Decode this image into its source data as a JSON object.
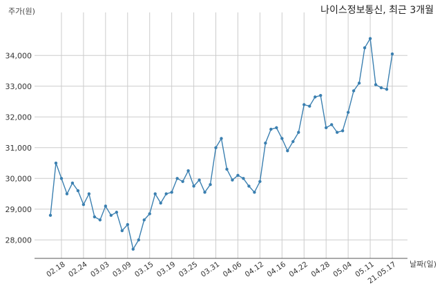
{
  "chart_data": {
    "type": "line",
    "title": "나이스정보통신, 최근 3개월",
    "ylabel": "주가(원)",
    "xlabel": "날짜(일)",
    "ylim": [
      27400,
      35400
    ],
    "yticks": [
      28000,
      29000,
      30000,
      31000,
      32000,
      33000,
      34000
    ],
    "ytick_labels": [
      "28,000",
      "29,000",
      "30,000",
      "31,000",
      "32,000",
      "33,000",
      "34,000"
    ],
    "xtick_labels": [
      "02.18",
      "02.24",
      "03.03",
      "03.09",
      "03.15",
      "03.19",
      "03.25",
      "03.31",
      "04.06",
      "04.12",
      "04.16",
      "04.22",
      "04.28",
      "05.04",
      "05.11",
      "21.05.17"
    ],
    "xtick_index": [
      2,
      6,
      10,
      14,
      18,
      22,
      26,
      30,
      34,
      38,
      42,
      46,
      50,
      54,
      58,
      62
    ],
    "grid": true,
    "color": "#3a7fb0",
    "values": [
      28800,
      30500,
      30000,
      29500,
      29850,
      29600,
      29150,
      29500,
      28750,
      28650,
      29100,
      28800,
      28900,
      28300,
      28500,
      27700,
      28000,
      28650,
      28850,
      29500,
      29200,
      29500,
      29550,
      30000,
      29900,
      30250,
      29750,
      29950,
      29550,
      29800,
      31000,
      31300,
      30300,
      29950,
      30100,
      30000,
      29750,
      29550,
      29900,
      31150,
      31600,
      31650,
      31300,
      30900,
      31200,
      31500,
      32400,
      32350,
      32650,
      32700,
      31650,
      31750,
      31500,
      31550,
      32150,
      32850,
      33100,
      34250,
      34550,
      33050,
      32950,
      32900,
      34050
    ]
  }
}
